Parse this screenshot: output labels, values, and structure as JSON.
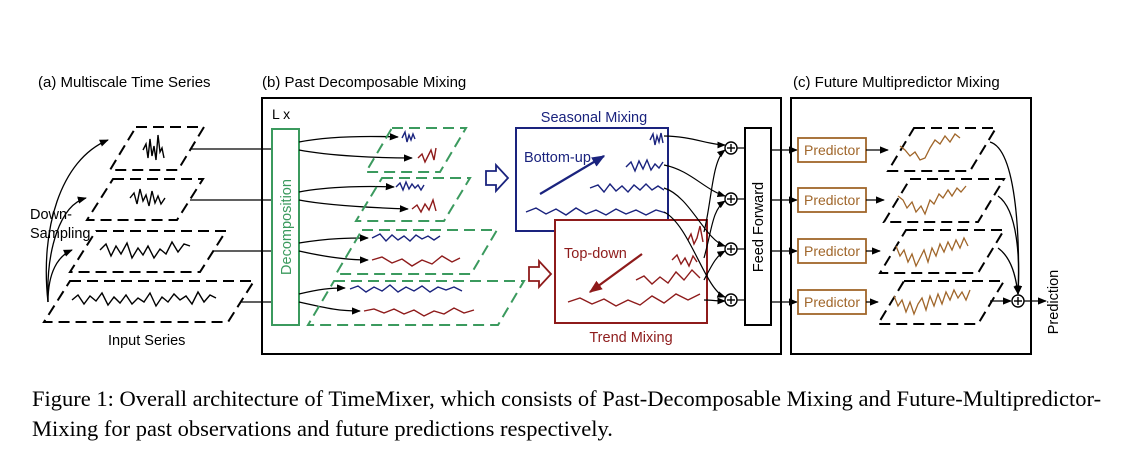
{
  "labels": {
    "panel_a": "(a) Multiscale Time Series",
    "panel_b": "(b) Past Decomposable Mixing",
    "panel_c": "(c) Future Multipredictor Mixing",
    "down_sampling_1": "Down-",
    "down_sampling_2": "Sampling",
    "input_series": "Input Series",
    "lx": "L x",
    "decomposition": "Decomposition",
    "seasonal_mixing": "Seasonal Mixing",
    "bottom_up": "Bottom-up",
    "top_down": "Top-down",
    "trend_mixing": "Trend Mixing",
    "feed_forward": "Feed Forward",
    "predictor": "Predictor",
    "prediction": "Prediction"
  },
  "caption": "Figure 1: Overall architecture of TimeMixer, which consists of Past-Decomposable Mixing and Future-Multipredictor-Mixing for past observations and future predictions respectively.",
  "colors": {
    "decomposition_green": "#3b9a5e",
    "seasonal_blue": "#1a237e",
    "trend_red": "#8e1b1b",
    "predictor_brown": "#a0662a"
  }
}
